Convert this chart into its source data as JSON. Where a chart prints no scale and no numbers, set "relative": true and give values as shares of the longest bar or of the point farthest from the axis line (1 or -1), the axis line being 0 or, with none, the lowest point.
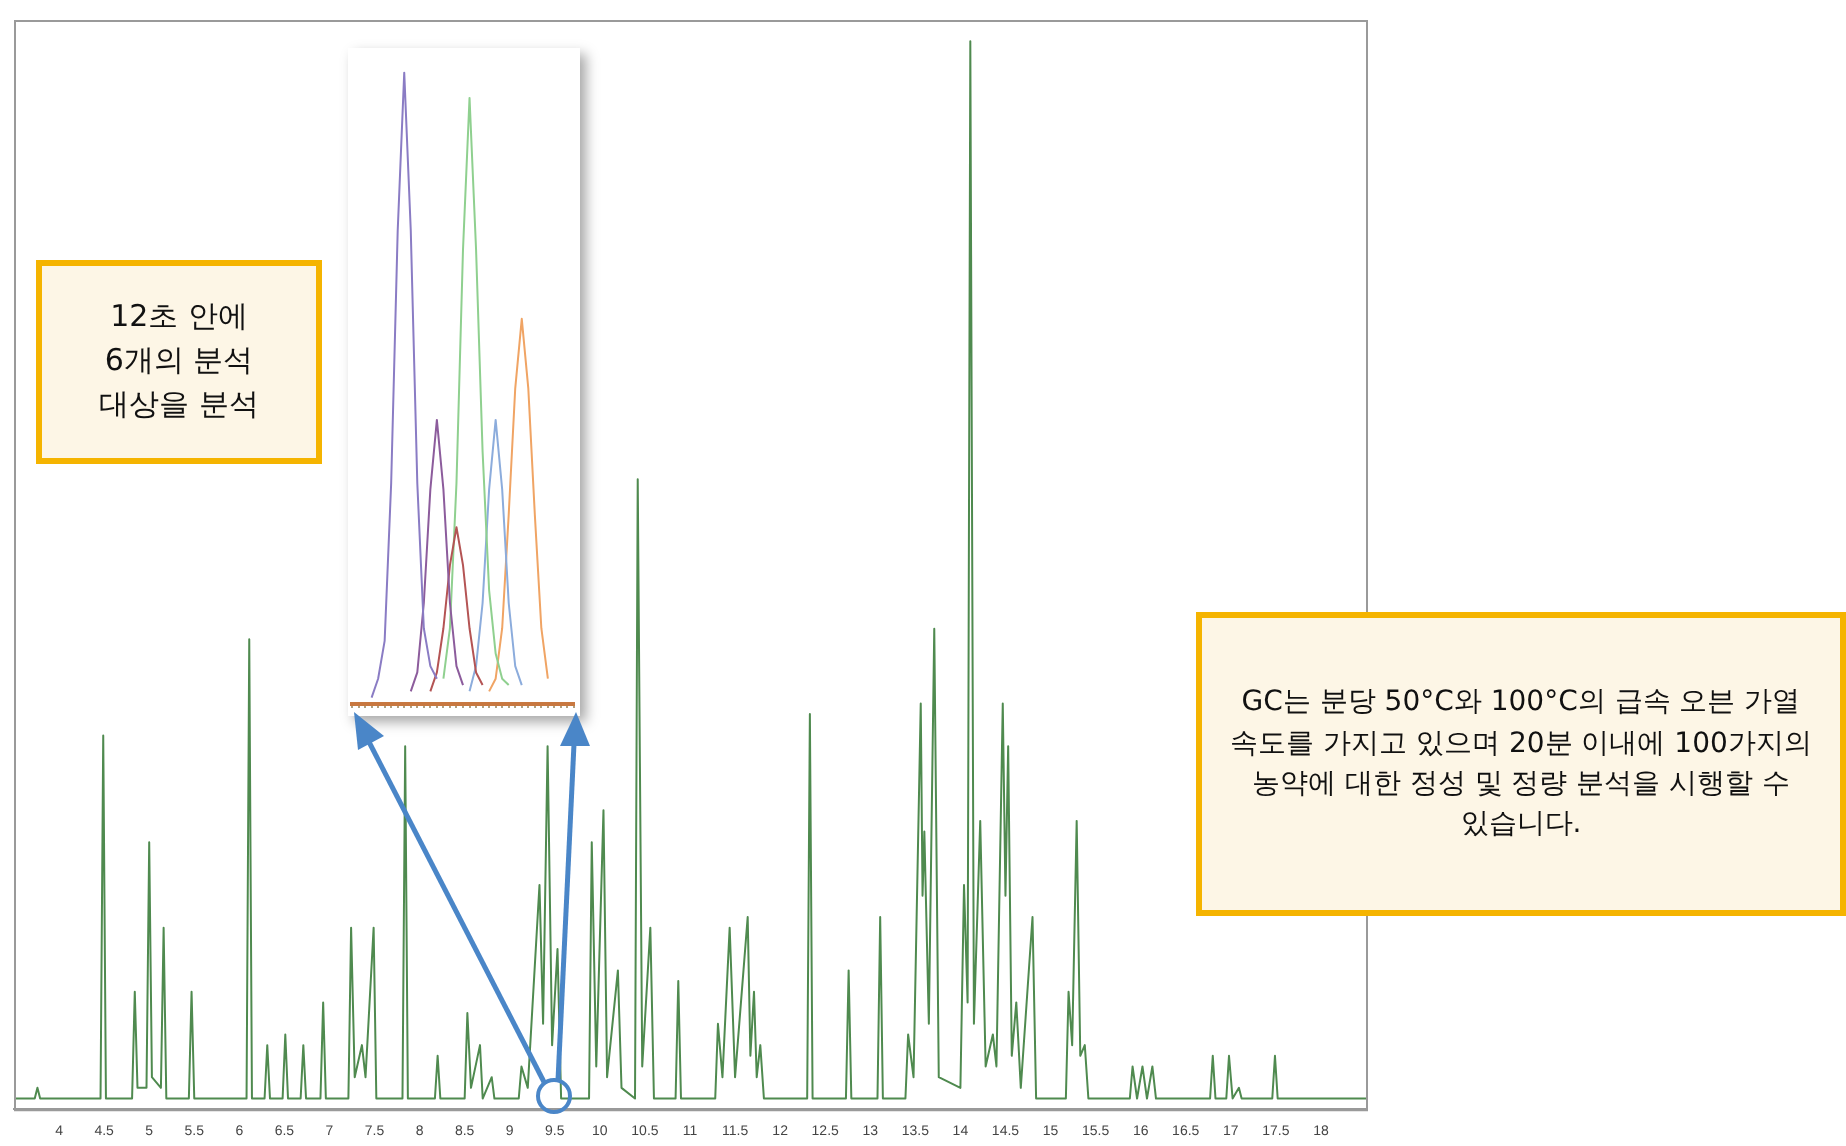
{
  "chart_data": [
    {
      "type": "line",
      "relative": true,
      "color": "#4f8a4f",
      "marker": "none",
      "tick_labels": "x",
      "xlim": [
        3.5,
        18.5
      ],
      "xticks": [
        4,
        4.5,
        5,
        5.5,
        6,
        6.5,
        7,
        7.5,
        8,
        8.5,
        9,
        9.5,
        10,
        10.5,
        11,
        11.5,
        12,
        12.5,
        13,
        13.5,
        14,
        14.5,
        15,
        15.5,
        16,
        16.5,
        17,
        17.5,
        18
      ],
      "x": [
        3.5,
        3.73,
        3.76,
        3.79,
        4.46,
        4.49,
        4.52,
        4.81,
        4.84,
        4.87,
        4.97,
        5.0,
        5.03,
        5.13,
        5.16,
        5.19,
        5.44,
        5.47,
        5.5,
        6.08,
        6.11,
        6.14,
        6.28,
        6.31,
        6.34,
        6.48,
        6.51,
        6.54,
        6.68,
        6.71,
        6.74,
        6.9,
        6.93,
        6.96,
        7.21,
        7.24,
        7.28,
        7.36,
        7.4,
        7.49,
        7.52,
        7.81,
        7.84,
        7.87,
        8.17,
        8.2,
        8.23,
        8.5,
        8.53,
        8.57,
        8.67,
        8.7,
        8.8,
        8.83,
        9.1,
        9.13,
        9.2,
        9.33,
        9.37,
        9.42,
        9.47,
        9.53,
        9.57,
        9.88,
        9.91,
        9.96,
        10.04,
        10.08,
        10.2,
        10.24,
        10.39,
        10.42,
        10.47,
        10.56,
        10.6,
        10.84,
        10.87,
        10.9,
        11.28,
        11.31,
        11.36,
        11.44,
        11.5,
        11.64,
        11.67,
        11.71,
        11.74,
        11.78,
        11.82,
        12.3,
        12.33,
        12.36,
        12.73,
        12.76,
        12.79,
        13.08,
        13.11,
        13.14,
        13.39,
        13.42,
        13.48,
        13.56,
        13.58,
        13.6,
        13.65,
        13.71,
        13.76,
        14.0,
        14.04,
        14.08,
        14.11,
        14.15,
        14.22,
        14.28,
        14.36,
        14.4,
        14.47,
        14.5,
        14.53,
        14.57,
        14.62,
        14.67,
        14.8,
        14.84,
        15.17,
        15.2,
        15.24,
        15.29,
        15.33,
        15.38,
        15.42,
        15.88,
        15.91,
        15.96,
        16.02,
        16.07,
        16.13,
        16.17,
        16.77,
        16.8,
        16.83,
        16.95,
        16.98,
        17.02,
        17.09,
        17.12,
        17.46,
        17.49,
        17.52,
        18.5
      ],
      "values": [
        0.01,
        0.01,
        0.02,
        0.01,
        0.01,
        0.35,
        0.01,
        0.01,
        0.11,
        0.02,
        0.02,
        0.25,
        0.03,
        0.02,
        0.17,
        0.01,
        0.01,
        0.11,
        0.01,
        0.01,
        0.44,
        0.01,
        0.01,
        0.06,
        0.01,
        0.01,
        0.07,
        0.01,
        0.01,
        0.06,
        0.01,
        0.01,
        0.1,
        0.01,
        0.01,
        0.17,
        0.03,
        0.06,
        0.03,
        0.17,
        0.01,
        0.01,
        0.34,
        0.01,
        0.01,
        0.05,
        0.01,
        0.01,
        0.09,
        0.02,
        0.06,
        0.01,
        0.03,
        0.01,
        0.01,
        0.04,
        0.02,
        0.21,
        0.08,
        0.34,
        0.06,
        0.15,
        0.01,
        0.01,
        0.25,
        0.04,
        0.28,
        0.03,
        0.13,
        0.02,
        0.01,
        0.59,
        0.04,
        0.17,
        0.01,
        0.01,
        0.12,
        0.01,
        0.01,
        0.08,
        0.03,
        0.17,
        0.03,
        0.18,
        0.05,
        0.11,
        0.03,
        0.06,
        0.01,
        0.01,
        0.37,
        0.01,
        0.01,
        0.13,
        0.01,
        0.01,
        0.18,
        0.01,
        0.01,
        0.07,
        0.03,
        0.38,
        0.2,
        0.26,
        0.08,
        0.45,
        0.03,
        0.02,
        0.21,
        0.1,
        1,
        0.08,
        0.27,
        0.04,
        0.07,
        0.04,
        0.38,
        0.2,
        0.34,
        0.05,
        0.1,
        0.02,
        0.18,
        0.01,
        0.01,
        0.11,
        0.06,
        0.27,
        0.05,
        0.06,
        0.01,
        0.01,
        0.04,
        0.01,
        0.04,
        0.01,
        0.04,
        0.01,
        0.01,
        0.05,
        0.01,
        0.01,
        0.05,
        0.01,
        0.02,
        0.01,
        0.01,
        0.05,
        0.01,
        0.01
      ],
      "annotations": [
        "12초 안에 6개의 분석 대상을 분석",
        "GC는 분당 50°C와 100°C의 급속 오븐 가열 속도를 가지고 있으며 20분 이내에 100가지의 농약에 대한 정성 및 정량 분석을 시행할 수 있습니다."
      ]
    },
    {
      "type": "line",
      "relative": true,
      "marker": "none",
      "tick_labels": false,
      "categories": [
        null,
        null,
        null,
        null,
        null,
        null,
        null,
        null,
        null,
        null,
        null,
        null,
        null,
        null,
        null,
        null,
        null,
        null,
        null,
        null,
        null,
        null,
        null,
        null,
        null,
        null,
        null,
        null,
        null,
        null,
        null,
        null,
        null,
        null,
        null
      ],
      "series": [
        {
          "color": "#8a7cc4",
          "values": [
            null,
            null,
            null,
            0.01,
            0.04,
            0.1,
            0.35,
            0.75,
            1,
            0.75,
            0.35,
            0.12,
            0.06,
            0.04,
            null,
            null,
            null,
            null,
            null,
            null,
            null,
            null,
            null,
            null,
            null,
            null,
            null,
            null,
            null,
            null,
            null,
            null,
            null,
            null,
            null
          ]
        },
        {
          "color": "#8c5c9c",
          "values": [
            null,
            null,
            null,
            null,
            null,
            null,
            null,
            null,
            null,
            0.02,
            0.05,
            0.16,
            0.34,
            0.45,
            0.34,
            0.16,
            0.06,
            0.03,
            null,
            null,
            null,
            null,
            null,
            null,
            null,
            null,
            null,
            null,
            null,
            null,
            null,
            null,
            null,
            null,
            null
          ]
        },
        {
          "color": "#b45454",
          "values": [
            null,
            null,
            null,
            null,
            null,
            null,
            null,
            null,
            null,
            null,
            null,
            null,
            0.02,
            0.05,
            0.12,
            0.22,
            0.28,
            0.22,
            0.12,
            0.05,
            0.03,
            null,
            null,
            null,
            null,
            null,
            null,
            null,
            null,
            null,
            null,
            null,
            null,
            null,
            null
          ]
        },
        {
          "color": "#8fd08f",
          "values": [
            null,
            null,
            null,
            null,
            null,
            null,
            null,
            null,
            null,
            null,
            null,
            null,
            null,
            null,
            0.04,
            0.12,
            0.35,
            0.72,
            0.96,
            0.72,
            0.4,
            0.18,
            0.08,
            0.04,
            0.03,
            null,
            null,
            null,
            null,
            null,
            null,
            null,
            null,
            null,
            null
          ]
        },
        {
          "color": "#8cacdc",
          "values": [
            null,
            null,
            null,
            null,
            null,
            null,
            null,
            null,
            null,
            null,
            null,
            null,
            null,
            null,
            null,
            null,
            null,
            null,
            0.02,
            0.06,
            0.16,
            0.34,
            0.45,
            0.34,
            0.16,
            0.06,
            0.03,
            null,
            null,
            null,
            null,
            null,
            null,
            null,
            null
          ]
        },
        {
          "color": "#f0a464",
          "values": [
            null,
            null,
            null,
            null,
            null,
            null,
            null,
            null,
            null,
            null,
            null,
            null,
            null,
            null,
            null,
            null,
            null,
            null,
            null,
            null,
            null,
            0.02,
            0.04,
            0.12,
            0.3,
            0.5,
            0.61,
            0.5,
            0.3,
            0.12,
            0.04,
            null,
            null,
            null,
            null
          ]
        }
      ]
    }
  ]
}
